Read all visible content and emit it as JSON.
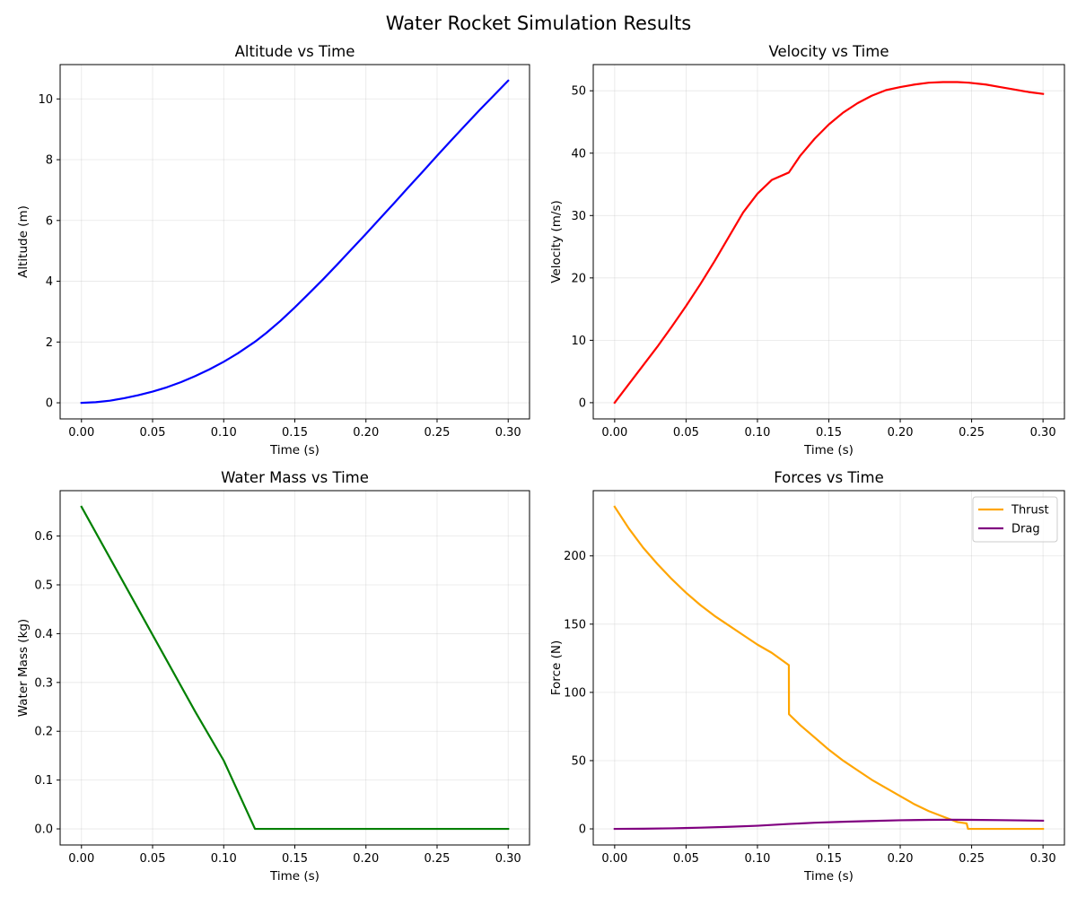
{
  "figure": {
    "title": "Water Rocket Simulation Results"
  },
  "chart_data": [
    {
      "type": "line",
      "title": "Altitude vs Time",
      "xlabel": "Time (s)",
      "ylabel": "Altitude (m)",
      "xlim": [
        -0.015,
        0.315
      ],
      "ylim": [
        -0.53,
        11.13
      ],
      "xticks": [
        0.0,
        0.05,
        0.1,
        0.15,
        0.2,
        0.25,
        0.3
      ],
      "xtick_labels": [
        "0.00",
        "0.05",
        "0.10",
        "0.15",
        "0.20",
        "0.25",
        "0.30"
      ],
      "yticks": [
        0,
        2,
        4,
        6,
        8,
        10
      ],
      "ytick_labels": [
        "0",
        "2",
        "4",
        "6",
        "8",
        "10"
      ],
      "grid": true,
      "series": [
        {
          "color": "#0000ff",
          "x": [
            0,
            0.01,
            0.02,
            0.03,
            0.04,
            0.05,
            0.06,
            0.07,
            0.08,
            0.09,
            0.1,
            0.11,
            0.122,
            0.13,
            0.14,
            0.15,
            0.16,
            0.17,
            0.18,
            0.19,
            0.2,
            0.21,
            0.22,
            0.23,
            0.24,
            0.25,
            0.26,
            0.27,
            0.28,
            0.29,
            0.3
          ],
          "y": [
            0,
            0.02,
            0.07,
            0.15,
            0.25,
            0.37,
            0.51,
            0.68,
            0.88,
            1.1,
            1.35,
            1.63,
            2.01,
            2.3,
            2.7,
            3.14,
            3.6,
            4.07,
            4.56,
            5.06,
            5.56,
            6.07,
            6.58,
            7.1,
            7.61,
            8.13,
            8.64,
            9.14,
            9.64,
            10.12,
            10.6
          ]
        }
      ]
    },
    {
      "type": "line",
      "title": "Velocity vs Time",
      "xlabel": "Time (s)",
      "ylabel": "Velocity (m/s)",
      "xlim": [
        -0.015,
        0.315
      ],
      "ylim": [
        -2.6,
        54.2
      ],
      "xticks": [
        0.0,
        0.05,
        0.1,
        0.15,
        0.2,
        0.25,
        0.3
      ],
      "xtick_labels": [
        "0.00",
        "0.05",
        "0.10",
        "0.15",
        "0.20",
        "0.25",
        "0.30"
      ],
      "yticks": [
        0,
        10,
        20,
        30,
        40,
        50
      ],
      "ytick_labels": [
        "0",
        "10",
        "20",
        "30",
        "40",
        "50"
      ],
      "grid": true,
      "series": [
        {
          "color": "#ff0000",
          "x": [
            0,
            0.01,
            0.02,
            0.03,
            0.04,
            0.05,
            0.06,
            0.07,
            0.08,
            0.09,
            0.1,
            0.11,
            0.122,
            0.13,
            0.14,
            0.15,
            0.16,
            0.17,
            0.18,
            0.19,
            0.2,
            0.21,
            0.22,
            0.23,
            0.235,
            0.24,
            0.248,
            0.26,
            0.27,
            0.28,
            0.29,
            0.3
          ],
          "y": [
            0,
            3.0,
            6.0,
            9.0,
            12.2,
            15.5,
            19.0,
            22.7,
            26.6,
            30.5,
            33.5,
            35.7,
            36.9,
            39.6,
            42.3,
            44.6,
            46.5,
            48.0,
            49.2,
            50.1,
            50.6,
            51.0,
            51.3,
            51.4,
            51.4,
            51.4,
            51.3,
            51.0,
            50.6,
            50.2,
            49.8,
            49.5
          ]
        }
      ]
    },
    {
      "type": "line",
      "title": "Water Mass vs Time",
      "xlabel": "Time (s)",
      "ylabel": "Water Mass (kg)",
      "xlim": [
        -0.015,
        0.315
      ],
      "ylim": [
        -0.033,
        0.693
      ],
      "xticks": [
        0.0,
        0.05,
        0.1,
        0.15,
        0.2,
        0.25,
        0.3
      ],
      "xtick_labels": [
        "0.00",
        "0.05",
        "0.10",
        "0.15",
        "0.20",
        "0.25",
        "0.30"
      ],
      "yticks": [
        0.0,
        0.1,
        0.2,
        0.3,
        0.4,
        0.5,
        0.6
      ],
      "ytick_labels": [
        "0.0",
        "0.1",
        "0.2",
        "0.3",
        "0.4",
        "0.5",
        "0.6"
      ],
      "grid": true,
      "series": [
        {
          "color": "#008000",
          "x": [
            0,
            0.02,
            0.04,
            0.06,
            0.08,
            0.1,
            0.122,
            0.15,
            0.2,
            0.25,
            0.3
          ],
          "y": [
            0.66,
            0.555,
            0.45,
            0.345,
            0.24,
            0.14,
            0.0,
            0.0,
            0.0,
            0.0,
            0.0
          ]
        }
      ]
    },
    {
      "type": "line",
      "title": "Forces vs Time",
      "xlabel": "Time (s)",
      "ylabel": "Force (N)",
      "xlim": [
        -0.015,
        0.315
      ],
      "ylim": [
        -11.8,
        247.8
      ],
      "xticks": [
        0.0,
        0.05,
        0.1,
        0.15,
        0.2,
        0.25,
        0.3
      ],
      "xtick_labels": [
        "0.00",
        "0.05",
        "0.10",
        "0.15",
        "0.20",
        "0.25",
        "0.30"
      ],
      "yticks": [
        0,
        50,
        100,
        150,
        200
      ],
      "ytick_labels": [
        "0",
        "50",
        "100",
        "150",
        "200"
      ],
      "grid": true,
      "legend": "top-right",
      "series": [
        {
          "name": "Thrust",
          "color": "#ffa500",
          "x": [
            0,
            0.01,
            0.02,
            0.03,
            0.04,
            0.05,
            0.06,
            0.07,
            0.08,
            0.09,
            0.1,
            0.11,
            0.122,
            0.1221,
            0.13,
            0.14,
            0.15,
            0.16,
            0.17,
            0.18,
            0.19,
            0.2,
            0.21,
            0.22,
            0.23,
            0.24,
            0.2465,
            0.2475,
            0.26,
            0.28,
            0.3
          ],
          "y": [
            236,
            220,
            206,
            194,
            183,
            173,
            164,
            156,
            149,
            142,
            135,
            129,
            120,
            84,
            76,
            67,
            58,
            50,
            43,
            36,
            30,
            24,
            18,
            13,
            9,
            5,
            4,
            0,
            0,
            0,
            0
          ]
        },
        {
          "name": "Drag",
          "color": "#800080",
          "x": [
            0,
            0.02,
            0.04,
            0.06,
            0.08,
            0.1,
            0.122,
            0.14,
            0.16,
            0.18,
            0.2,
            0.22,
            0.235,
            0.25,
            0.27,
            0.3
          ],
          "y": [
            0,
            0.1,
            0.4,
            0.9,
            1.5,
            2.3,
            3.6,
            4.5,
            5.2,
            5.8,
            6.3,
            6.6,
            6.7,
            6.6,
            6.4,
            6.0
          ]
        }
      ]
    }
  ]
}
